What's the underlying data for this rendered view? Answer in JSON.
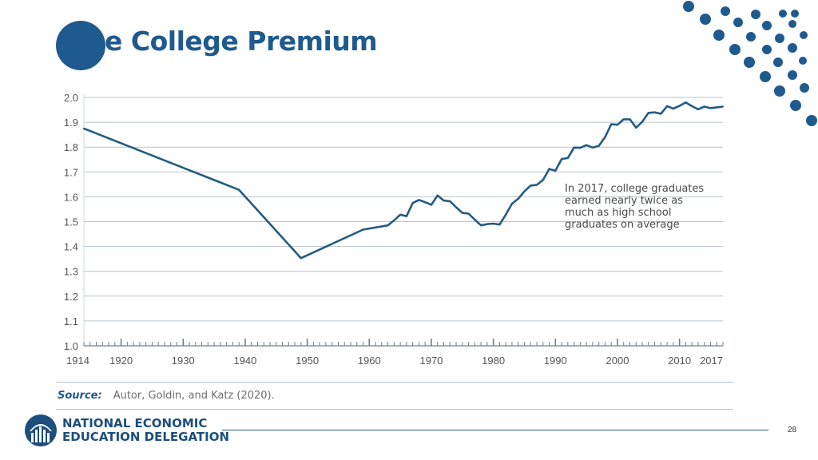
{
  "slide": {
    "title": "The College Premium",
    "page_number": "28",
    "source_label": "Source:",
    "source_text": "Autor, Goldin, and Katz (2020).",
    "org_line1": "NATIONAL ECONOMIC",
    "org_line2": "EDUCATION DELEGATION",
    "colors": {
      "brand": "#1f5a8f",
      "line": "#245b80",
      "grid": "#b9c3cc",
      "axis": "#6d7f8f"
    }
  },
  "chart_data": {
    "type": "line",
    "title": "",
    "xlabel": "",
    "ylabel": "",
    "xlim": [
      1914,
      2017
    ],
    "ylim": [
      1.0,
      2.0
    ],
    "grid": true,
    "y_ticks": [
      "1.0",
      "1.1",
      "1.2",
      "1.3",
      "1.4",
      "1.5",
      "1.6",
      "1.7",
      "1.8",
      "1.9",
      "2.0"
    ],
    "x_ticks": [
      "1914",
      "1920",
      "1930",
      "1940",
      "1950",
      "1960",
      "1970",
      "1980",
      "1990",
      "2000",
      "2010",
      "2017"
    ],
    "annotation": {
      "lines": [
        "In 2017, college graduates",
        "earned nearly twice as",
        "much as high school",
        "graduates on average"
      ]
    },
    "series": [
      {
        "x": [
          1914,
          1939,
          1949,
          1959,
          1963,
          1964,
          1965,
          1966,
          1967,
          1968,
          1969,
          1970,
          1971,
          1972,
          1973,
          1974,
          1975,
          1976,
          1977,
          1978,
          1979,
          1980,
          1981,
          1982,
          1983,
          1984,
          1985,
          1986,
          1987,
          1988,
          1989,
          1990,
          1991,
          1992,
          1993,
          1994,
          1995,
          1996,
          1997,
          1998,
          1999,
          2000,
          2001,
          2002,
          2003,
          2004,
          2005,
          2006,
          2007,
          2008,
          2009,
          2010,
          2011,
          2012,
          2013,
          2014,
          2015,
          2016,
          2017
        ],
        "y": [
          1.875,
          1.628,
          1.353,
          1.468,
          1.485,
          1.505,
          1.528,
          1.522,
          1.575,
          1.587,
          1.578,
          1.568,
          1.605,
          1.585,
          1.582,
          1.558,
          1.535,
          1.532,
          1.508,
          1.485,
          1.49,
          1.492,
          1.488,
          1.528,
          1.572,
          1.592,
          1.622,
          1.645,
          1.648,
          1.668,
          1.712,
          1.705,
          1.752,
          1.756,
          1.798,
          1.797,
          1.808,
          1.798,
          1.805,
          1.84,
          1.892,
          1.89,
          1.912,
          1.912,
          1.878,
          1.902,
          1.938,
          1.94,
          1.934,
          1.965,
          1.955,
          1.966,
          1.98,
          1.965,
          1.952,
          1.963,
          1.957,
          1.96,
          1.963
        ]
      }
    ]
  }
}
